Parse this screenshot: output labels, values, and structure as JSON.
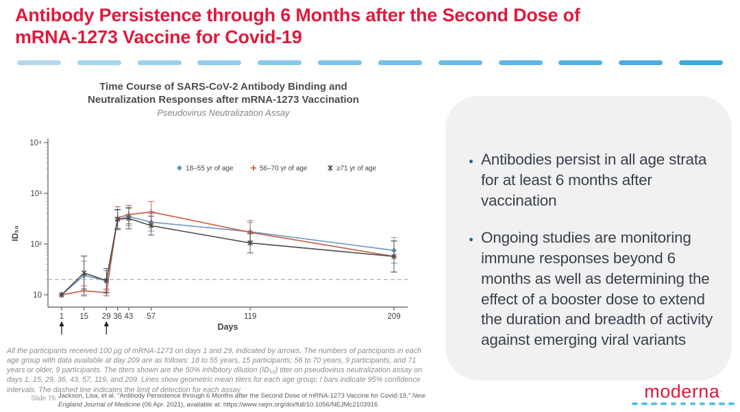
{
  "slide": {
    "title": "Antibody Persistence through 6 Months after the Second Dose of mRNA-1273 Vaccine for Covid-19",
    "slide_number": "Slide 76",
    "citation": {
      "pre": "Jackson, Lisa, et al. \"Antibody Persistence through 6 Months after the Second Dose of mRNA-1273 Vaccine for Covid-19,\" ",
      "journal": "New England Journal of Medicine",
      "post": " (06 Apr. 2021), available at: https://www.nejm.org/doi/full/10.1056/NEJMc2103916"
    },
    "logo_text": "moderna"
  },
  "colors": {
    "title_red": "#e0193c",
    "divider_from": "#b4d9ee",
    "divider_to": "#3ea9de",
    "logo_dash": "#56c3e8",
    "card_bg": "#f1f1f2",
    "bullet_dot": "#2d5e8e",
    "axis_gray": "#555555"
  },
  "figure": {
    "title": "Time Course of SARS-CoV-2 Antibody Binding and Neutralization Responses after mRNA-1273 Vaccination",
    "subtitle": "Pseudovirus Neutralization Assay",
    "footnote": "All the participants received 100 μg of mRNA-1273 on days 1 and 29, indicated by arrows. The numbers of participants in each age group with data available at day 209 are as follows: 18 to 55 years, 15 participants; 56 to 70 years, 9 participants; and 71 years or older, 9 participants. The titers shown are the 50% inhibitory dilution (ID₅₀) titer on pseudovirus neutralization assay on days 1, 15, 29, 36, 43, 57, 119, and 209. Lines show geometric mean titers for each age group; I bars indicate 95% confidence intervals. The dashed line indicates the limit of detection for each assay"
  },
  "bullets": [
    "Antibodies persist in all age strata for at least 6 months after vaccination",
    "Ongoing studies are monitoring immune responses beyond 6 months as well as determining the effect of a booster dose to extend the duration and breadth of activity against emerging viral variants"
  ],
  "chart_data": {
    "type": "line",
    "x": [
      1,
      15,
      29,
      36,
      43,
      57,
      119,
      209
    ],
    "xlabel": "Days",
    "ylabel": "ID₅₀",
    "yscale": "log",
    "ylim": [
      10,
      10000
    ],
    "ytick_labels": [
      "10",
      "10²",
      "10³",
      "10⁴"
    ],
    "limit_of_detection": 20,
    "dose_arrows_days": [
      1,
      29
    ],
    "legend_position": "inside-top-right",
    "grid": false,
    "series": [
      {
        "name": "18–55 yr of age",
        "color": "#6b93bf",
        "marker": "diamond",
        "values": [
          10,
          24,
          19,
          300,
          350,
          270,
          175,
          75
        ],
        "ci_low": [
          10,
          10,
          12,
          190,
          230,
          180,
          115,
          42
        ],
        "ci_high": [
          10,
          46,
          30,
          470,
          530,
          400,
          265,
          135
        ]
      },
      {
        "name": "56–70 yr of age",
        "color": "#c55b45",
        "marker": "plus",
        "values": [
          10,
          12,
          11,
          330,
          380,
          430,
          170,
          57
        ],
        "ci_low": [
          10,
          9.5,
          9.5,
          200,
          250,
          270,
          105,
          28
        ],
        "ci_high": [
          10,
          15,
          13,
          545,
          580,
          690,
          290,
          115
        ]
      },
      {
        "name": "≥71 yr of age",
        "color": "#4a4a4a",
        "marker": "asterisk",
        "values": [
          10,
          27,
          19,
          310,
          320,
          230,
          105,
          57
        ],
        "ci_low": [
          10,
          13,
          11,
          200,
          200,
          150,
          67,
          28
        ],
        "ci_high": [
          10,
          58,
          33,
          480,
          510,
          355,
          160,
          115
        ]
      }
    ]
  }
}
